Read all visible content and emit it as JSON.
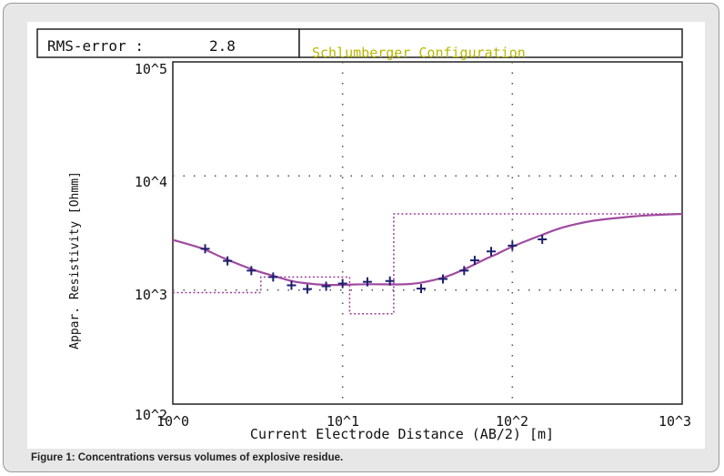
{
  "chart_data": {
    "type": "line",
    "title": "Schlumberger Configuration",
    "rms": {
      "label": "RMS-error :",
      "value": "2.8"
    },
    "xlabel": "Current Electrode Distance (AB/2) [m]",
    "ylabel": "Appar. Resistivity [Ohmm]",
    "xscale": "log",
    "yscale": "log",
    "xlim": [
      1,
      1000
    ],
    "ylim": [
      100,
      100000
    ],
    "x_ticks": [
      "10^0",
      "10^1",
      "10^2",
      "10^3"
    ],
    "y_ticks": [
      "10^2",
      "10^3",
      "10^4",
      "10^5"
    ],
    "grid": "dotted",
    "series": [
      {
        "kind": "measured-points",
        "x": [
          1.55,
          2.1,
          2.9,
          3.9,
          5.0,
          6.2,
          8.0,
          10.0,
          14.0,
          19.0,
          29.0,
          39.0,
          52.0,
          60.0,
          75.0,
          100.0,
          150.0
        ],
        "y": [
          2300,
          1800,
          1480,
          1300,
          1100,
          1020,
          1080,
          1140,
          1180,
          1200,
          1030,
          1250,
          1480,
          1820,
          2180,
          2450,
          2780
        ]
      },
      {
        "kind": "model-curve",
        "x": [
          1,
          1.5,
          2,
          3,
          4,
          5,
          6,
          8,
          10,
          12,
          15,
          20,
          25,
          30,
          40,
          50,
          60,
          70,
          80,
          100,
          150,
          200,
          300,
          500,
          700,
          1000
        ],
        "y": [
          2750,
          2300,
          1900,
          1500,
          1320,
          1200,
          1150,
          1110,
          1110,
          1120,
          1125,
          1120,
          1130,
          1170,
          1300,
          1480,
          1680,
          1880,
          2050,
          2400,
          3050,
          3550,
          4050,
          4400,
          4550,
          4650
        ]
      },
      {
        "kind": "layer-model",
        "depth_boundaries": [
          3.3,
          11,
          20
        ],
        "resistivities": [
          950,
          1300,
          620,
          4650
        ]
      }
    ]
  },
  "caption": "Figure 1: Concentrations versus volumes of explosive residue."
}
